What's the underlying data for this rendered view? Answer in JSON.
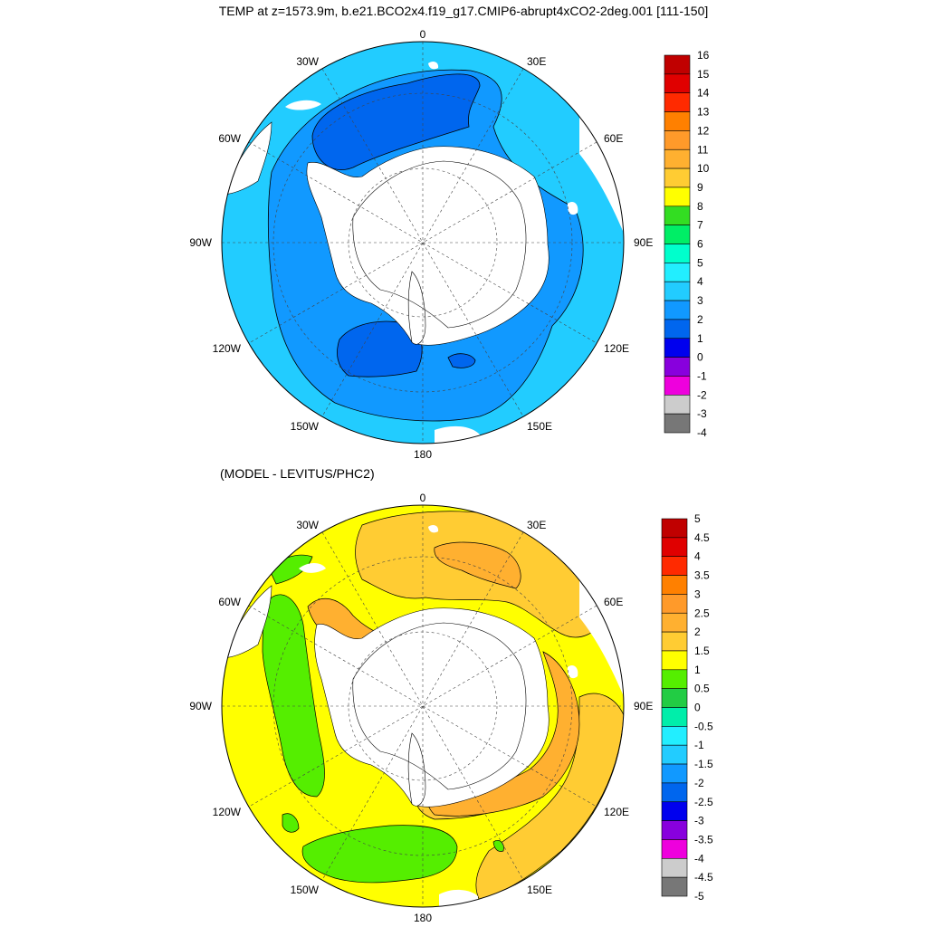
{
  "title": "TEMP at z=1573.9m, b.e21.BCO2x4.f19_g17.CMIP6-abrupt4xCO2-2deg.001 [111-150]",
  "subtitle": "(MODEL - LEVITUS/PHC2)",
  "lon_labels": [
    "0",
    "30E",
    "60E",
    "90E",
    "120E",
    "150E",
    "180",
    "150W",
    "120W",
    "90W",
    "60W",
    "30W"
  ],
  "top_colorbar": {
    "labels": [
      "16",
      "15",
      "14",
      "13",
      "12",
      "11",
      "10",
      "9",
      "8",
      "7",
      "6",
      "5",
      "4",
      "3",
      "2",
      "1",
      "0",
      "-1",
      "-2",
      "-3",
      "-4"
    ],
    "colors": [
      "#c00000",
      "#e00000",
      "#ff2a00",
      "#ff8000",
      "#ff9a2a",
      "#ffb030",
      "#ffcc33",
      "#ffff00",
      "#33dd22",
      "#00ee66",
      "#00ffcc",
      "#22eeff",
      "#22ccff",
      "#1199ff",
      "#0066ee",
      "#0000ee",
      "#8800dd",
      "#ee00dd",
      "#cccccc",
      "#777777"
    ]
  },
  "bottom_colorbar": {
    "labels": [
      "5",
      "4.5",
      "4",
      "3.5",
      "3",
      "2.5",
      "2",
      "1.5",
      "1",
      "0.5",
      "0",
      "-0.5",
      "-1",
      "-1.5",
      "-2",
      "-2.5",
      "-3",
      "-3.5",
      "-4",
      "-4.5",
      "-5"
    ],
    "colors": [
      "#c00000",
      "#e00000",
      "#ff2a00",
      "#ff8000",
      "#ff9a2a",
      "#ffb030",
      "#ffcc33",
      "#ffff00",
      "#55ee00",
      "#22cc44",
      "#00eeaa",
      "#22eeff",
      "#22ccff",
      "#1199ff",
      "#0066ee",
      "#0000ee",
      "#8800dd",
      "#ee00dd",
      "#cccccc",
      "#777777"
    ]
  }
}
